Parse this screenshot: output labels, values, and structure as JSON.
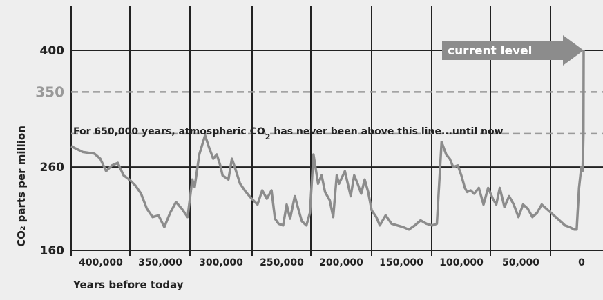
{
  "chart_data": {
    "type": "line",
    "title": "",
    "xlabel": "Years before today",
    "ylabel": "CO₂ parts per million",
    "xlim": [
      440000,
      -5000
    ],
    "ylim": [
      160,
      400
    ],
    "x_ticks": [
      400000,
      350000,
      300000,
      250000,
      200000,
      150000,
      100000,
      50000,
      0
    ],
    "x_tick_labels": [
      "400,000",
      "350,000",
      "300,000",
      "250,000",
      "200,000",
      "150,000",
      "100,000",
      "50,000",
      "0"
    ],
    "y_ticks": [
      160,
      260,
      400
    ],
    "y_tick_labels": [
      "160",
      "260",
      "400"
    ],
    "reference_lines": [
      {
        "value": 350,
        "label": "350",
        "style": "dashed"
      },
      {
        "value": 300,
        "label": "",
        "style": "dashed"
      }
    ],
    "annotations": [
      {
        "text_before": "For 650,000 years, atmospheric ",
        "co2": "CO",
        "sub": "2",
        "text_after": " has never been above this line...until now"
      }
    ],
    "arrow_label": "current level",
    "grid": true,
    "colors": {
      "line": "#8c8c8c",
      "grid": "#222222",
      "reference": "#9a9a9a",
      "arrow": "#8c8c8c",
      "background": "#eeeeee"
    },
    "series": [
      {
        "x": [
          440000,
          430000,
          420000,
          415000,
          410000,
          405000,
          400000,
          395000,
          390000,
          385000,
          380000,
          375000,
          370000,
          365000,
          360000,
          355000,
          350000,
          345000,
          340000,
          336000,
          334000,
          330000,
          325000,
          322000,
          318000,
          315000,
          312000,
          310000,
          305000,
          302000,
          300000,
          295000,
          290000,
          285000,
          280000,
          276000,
          272000,
          268000,
          265000,
          262000,
          258000,
          255000,
          252000,
          248000,
          245000,
          242000,
          238000,
          235000,
          232000,
          228000,
          225000,
          222000,
          218000,
          215000,
          212000,
          210000,
          205000,
          200000,
          197000,
          194000,
          191000,
          188000,
          185000,
          182000,
          178000,
          175000,
          170000,
          165000,
          160000,
          155000,
          150000,
          145000,
          140000,
          135000,
          130000,
          126000,
          122000,
          118000,
          115000,
          112000,
          108000,
          105000,
          102000,
          100000,
          97000,
          94000,
          90000,
          86000,
          82000,
          78000,
          75000,
          72000,
          68000,
          64000,
          60000,
          56000,
          52000,
          48000,
          44000,
          40000,
          36000,
          32000,
          28000,
          24000,
          20000,
          16000,
          12000,
          8000,
          6000,
          4000,
          2000,
          1000,
          500,
          200,
          0
        ],
        "y": [
          285,
          278,
          276,
          270,
          255,
          262,
          265,
          250,
          245,
          238,
          228,
          210,
          200,
          202,
          188,
          205,
          218,
          210,
          200,
          245,
          236,
          275,
          298,
          285,
          270,
          275,
          262,
          250,
          245,
          270,
          262,
          240,
          230,
          222,
          215,
          232,
          222,
          232,
          198,
          192,
          190,
          215,
          198,
          225,
          210,
          195,
          190,
          205,
          275,
          240,
          250,
          230,
          220,
          200,
          250,
          240,
          255,
          225,
          250,
          240,
          228,
          245,
          230,
          208,
          200,
          190,
          202,
          192,
          190,
          188,
          185,
          190,
          196,
          192,
          190,
          192,
          290,
          275,
          270,
          260,
          262,
          250,
          235,
          230,
          232,
          228,
          235,
          215,
          235,
          222,
          215,
          235,
          212,
          225,
          215,
          200,
          215,
          210,
          200,
          205,
          215,
          210,
          205,
          200,
          195,
          190,
          188,
          185,
          185,
          235,
          260,
          255,
          280,
          300,
          400
        ]
      }
    ]
  }
}
